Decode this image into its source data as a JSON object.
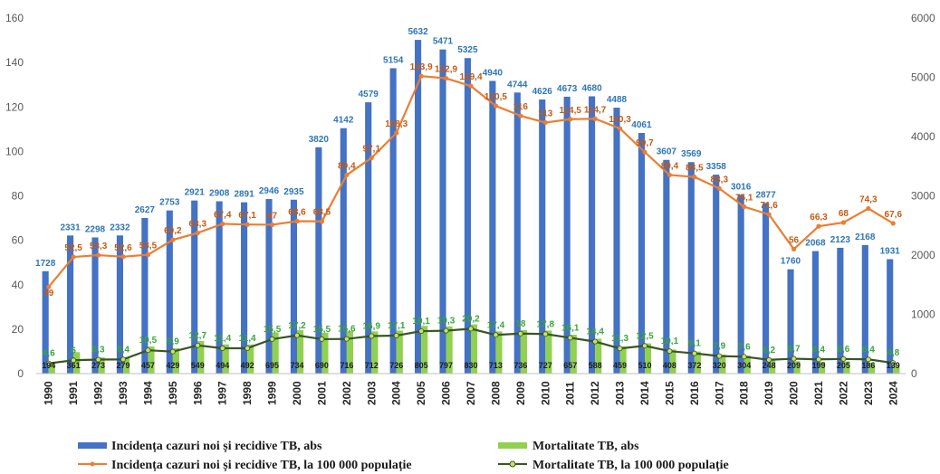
{
  "chart_data": {
    "type": "bar",
    "categories": [
      "1990",
      "1991",
      "1992",
      "1993",
      "1994",
      "1995",
      "1996",
      "1997",
      "1998",
      "1999",
      "2000",
      "2001",
      "2002",
      "2003",
      "2004",
      "2005",
      "2006",
      "2007",
      "2008",
      "2009",
      "2010",
      "2011",
      "2012",
      "2013",
      "2014",
      "2015",
      "2016",
      "2017",
      "2018",
      "2019",
      "2020",
      "2021",
      "2022",
      "2023",
      "2024"
    ],
    "y_left": {
      "ticks": [
        "0",
        "20",
        "40",
        "60",
        "80",
        "100",
        "120",
        "140",
        "160"
      ],
      "range": [
        0,
        160
      ]
    },
    "y_right": {
      "ticks": [
        "0",
        "1000",
        "2000",
        "3000",
        "4000",
        "5000",
        "6000"
      ],
      "range": [
        0,
        6000
      ]
    },
    "grid": false,
    "legend_position": "bottom",
    "series": [
      {
        "name": "Incidența cazuri noi și recidive TB, abs",
        "kind": "bar",
        "axis": "right",
        "color": "#4472c4",
        "label_color": "#2e75b6",
        "values": [
          1728,
          2331,
          2298,
          2332,
          2627,
          2753,
          2921,
          2908,
          2891,
          2946,
          2935,
          3820,
          4142,
          4579,
          5154,
          5632,
          5471,
          5325,
          4940,
          4744,
          4626,
          4673,
          4680,
          4488,
          4061,
          3607,
          3569,
          3358,
          3016,
          2877,
          1760,
          2068,
          2123,
          2168,
          1931
        ],
        "labels": [
          "1728",
          "2331",
          "2298",
          "2332",
          "2627",
          "2753",
          "2921",
          "2908",
          "2891",
          "2946",
          "2935",
          "3820",
          "4142",
          "4579",
          "5154",
          "5632",
          "5471",
          "5325",
          "4940",
          "4744",
          "4626",
          "4673",
          "4680",
          "4488",
          "4061",
          "3607",
          "3569",
          "3358",
          "3016",
          "2877",
          "1760",
          "2068",
          "2123",
          "2168",
          "1931"
        ]
      },
      {
        "name": "Mortalitate TB, abs",
        "kind": "bar",
        "axis": "right",
        "color": "#92d050",
        "label_color": "#1f1f1f",
        "values": [
          194,
          361,
          273,
          279,
          457,
          429,
          549,
          494,
          492,
          695,
          734,
          690,
          716,
          712,
          726,
          805,
          797,
          830,
          713,
          736,
          727,
          657,
          588,
          459,
          510,
          408,
          372,
          320,
          304,
          248,
          209,
          199,
          205,
          186,
          139
        ],
        "labels": [
          "194",
          "361",
          "273",
          "279",
          "457",
          "429",
          "549",
          "494",
          "492",
          "695",
          "734",
          "690",
          "716",
          "712",
          "726",
          "805",
          "797",
          "830",
          "713",
          "736",
          "727",
          "657",
          "588",
          "459",
          "510",
          "408",
          "372",
          "320",
          "304",
          "248",
          "209",
          "199",
          "205",
          "186",
          "139"
        ]
      },
      {
        "name": "Incidența cazuri noi și recidive TB, la 100 000 populație",
        "kind": "line",
        "axis": "left",
        "color": "#ed7d31",
        "label_color": "#c55a11",
        "values": [
          39,
          52.5,
          53.3,
          52.6,
          53.5,
          60.2,
          63.3,
          67.4,
          67.1,
          67,
          68.6,
          68.5,
          89.4,
          97.1,
          108.3,
          133.9,
          132.9,
          129.4,
          120.5,
          116,
          113,
          114.5,
          114.7,
          110.3,
          99.7,
          89.4,
          88.5,
          83.3,
          75.1,
          71.6,
          56,
          66.3,
          68,
          74.3,
          67.6
        ],
        "labels": [
          "39",
          "52,5",
          "53,3",
          "52,6",
          "53,5",
          "60,2",
          "63,3",
          "67,4",
          "67,1",
          "67",
          "68,6",
          "68,5",
          "89,4",
          "97,1",
          "108,3",
          "133,9",
          "132,9",
          "129,4",
          "120,5",
          "116",
          "113",
          "114,5",
          "114,7",
          "110,3",
          "99,7",
          "89,4",
          "88,5",
          "83,3",
          "75,1",
          "71,6",
          "56",
          "66,3",
          "68",
          "74,3",
          "67,6"
        ]
      },
      {
        "name": "Mortalitate TB, la 100 000 populație",
        "kind": "line",
        "axis": "left",
        "color": "#375623",
        "marker_color": "#c9e265",
        "label_color": "#3aa53a",
        "values": [
          4.6,
          6,
          6.3,
          6.4,
          10.5,
          9.9,
          12.7,
          11.4,
          11.4,
          15.5,
          17.2,
          15.5,
          15.6,
          16.9,
          17.1,
          19.1,
          19.3,
          20.2,
          17.4,
          18,
          17.8,
          16.1,
          14.4,
          11.3,
          12.5,
          10.1,
          9.1,
          7.9,
          7.6,
          6.2,
          6.7,
          6.4,
          6.6,
          6.4,
          4.8
        ],
        "labels": [
          "4,6",
          "6",
          "6,3",
          "6,4",
          "10,5",
          "9,9",
          "12,7",
          "11,4",
          "11,4",
          "15,5",
          "17,2",
          "15,5",
          "15,6",
          "16,9",
          "17,1",
          "19,1",
          "19,3",
          "20,2",
          "17,4",
          "18",
          "17,8",
          "16,1",
          "14,4",
          "11,3",
          "12,5",
          "10,1",
          "9,1",
          "7,9",
          "7,6",
          "6,2",
          "6,7",
          "6,4",
          "6,6",
          "6,4",
          "4,8"
        ]
      }
    ]
  }
}
